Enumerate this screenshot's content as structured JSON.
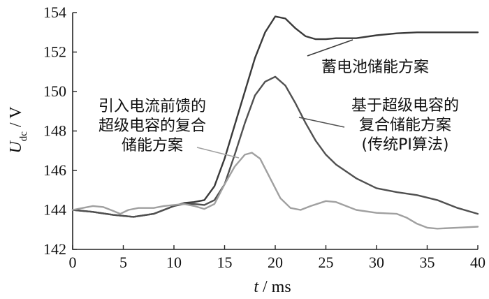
{
  "chart_data": {
    "type": "line",
    "xlabel": "t / ms",
    "ylabel": "U_dc / V",
    "xlim": [
      0,
      40
    ],
    "ylim": [
      142,
      154
    ],
    "x_ticks": [
      0,
      5,
      10,
      15,
      20,
      25,
      30,
      35,
      40
    ],
    "y_ticks": [
      142,
      144,
      146,
      148,
      150,
      152,
      154
    ],
    "grid": false,
    "series": [
      {
        "name": "蓄电池储能方案",
        "color": "#3a3a3a",
        "points": [
          [
            0,
            144.0
          ],
          [
            2,
            143.9
          ],
          [
            4,
            143.75
          ],
          [
            6,
            143.65
          ],
          [
            8,
            143.8
          ],
          [
            10,
            144.2
          ],
          [
            11,
            144.35
          ],
          [
            12,
            144.4
          ],
          [
            13,
            144.5
          ],
          [
            14,
            145.2
          ],
          [
            15,
            146.6
          ],
          [
            16,
            148.3
          ],
          [
            17,
            150.0
          ],
          [
            18,
            151.7
          ],
          [
            19,
            153.0
          ],
          [
            20,
            153.8
          ],
          [
            21,
            153.7
          ],
          [
            22,
            153.2
          ],
          [
            23,
            152.8
          ],
          [
            24,
            152.65
          ],
          [
            25,
            152.65
          ],
          [
            26,
            152.7
          ],
          [
            28,
            152.7
          ],
          [
            30,
            152.85
          ],
          [
            32,
            152.95
          ],
          [
            34,
            153.0
          ],
          [
            36,
            153.0
          ],
          [
            38,
            153.0
          ],
          [
            40,
            153.0
          ]
        ]
      },
      {
        "name": "基于超级电容的复合储能方案(传统PI算法)",
        "color": "#505050",
        "points": [
          [
            0,
            144.0
          ],
          [
            2,
            143.9
          ],
          [
            4,
            143.75
          ],
          [
            6,
            143.65
          ],
          [
            8,
            143.8
          ],
          [
            10,
            144.2
          ],
          [
            11,
            144.3
          ],
          [
            12,
            144.3
          ],
          [
            13,
            144.25
          ],
          [
            14,
            144.5
          ],
          [
            15,
            145.3
          ],
          [
            16,
            146.8
          ],
          [
            17,
            148.4
          ],
          [
            18,
            149.8
          ],
          [
            19,
            150.5
          ],
          [
            20,
            150.75
          ],
          [
            21,
            150.3
          ],
          [
            22,
            149.4
          ],
          [
            23,
            148.4
          ],
          [
            24,
            147.5
          ],
          [
            25,
            146.8
          ],
          [
            26,
            146.3
          ],
          [
            28,
            145.6
          ],
          [
            30,
            145.1
          ],
          [
            32,
            144.9
          ],
          [
            34,
            144.75
          ],
          [
            36,
            144.5
          ],
          [
            38,
            144.1
          ],
          [
            40,
            143.8
          ]
        ]
      },
      {
        "name": "引入电流前馈的超级电容的复合储能方案",
        "color": "#a0a0a0",
        "points": [
          [
            0,
            144.0
          ],
          [
            1,
            144.1
          ],
          [
            2,
            144.2
          ],
          [
            3,
            144.15
          ],
          [
            4,
            143.95
          ],
          [
            4.7,
            143.8
          ],
          [
            5.5,
            144.0
          ],
          [
            6.5,
            144.1
          ],
          [
            8,
            144.1
          ],
          [
            9,
            144.2
          ],
          [
            10,
            144.25
          ],
          [
            11,
            144.3
          ],
          [
            12,
            144.2
          ],
          [
            13,
            144.05
          ],
          [
            14,
            144.3
          ],
          [
            15,
            145.3
          ],
          [
            16,
            146.2
          ],
          [
            17,
            146.8
          ],
          [
            17.7,
            146.9
          ],
          [
            18.5,
            146.6
          ],
          [
            19.5,
            145.6
          ],
          [
            20.5,
            144.6
          ],
          [
            21.5,
            144.1
          ],
          [
            22.5,
            144.0
          ],
          [
            23.5,
            144.2
          ],
          [
            25,
            144.45
          ],
          [
            26,
            144.4
          ],
          [
            27,
            144.2
          ],
          [
            28,
            144.0
          ],
          [
            30,
            143.85
          ],
          [
            32,
            143.8
          ],
          [
            33,
            143.6
          ],
          [
            34,
            143.3
          ],
          [
            35,
            143.1
          ],
          [
            36,
            143.05
          ],
          [
            38,
            143.1
          ],
          [
            40,
            143.15
          ]
        ]
      }
    ],
    "annotations": [
      {
        "lines": [
          "蓄电池储能方案"
        ],
        "series": 0
      },
      {
        "lines": [
          "基于超级电容的",
          "复合储能方案",
          "(传统PI算法)"
        ],
        "series": 1
      },
      {
        "lines": [
          "引入电流前馈的",
          "超级电容的复合",
          "储能方案"
        ],
        "series": 2
      }
    ]
  }
}
